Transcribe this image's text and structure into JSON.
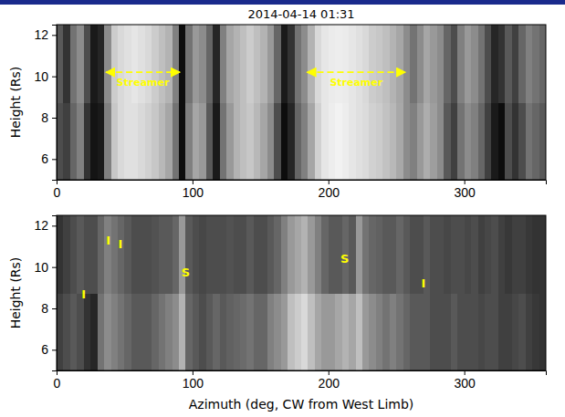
{
  "chart_data": [
    {
      "type": "heatmap",
      "title": "2014-04-14 01:31",
      "ylabel": "Height (Rs)",
      "xlim": [
        0,
        360
      ],
      "xticks": [
        0,
        100,
        200,
        300
      ],
      "ylim": [
        5,
        12.5
      ],
      "yticks": [
        6,
        8,
        10,
        12
      ],
      "zlim": [
        0,
        1
      ],
      "x_bins": [
        0,
        5,
        10,
        15,
        20,
        25,
        30,
        35,
        40,
        45,
        50,
        55,
        60,
        65,
        70,
        75,
        80,
        85,
        90,
        95,
        100,
        105,
        110,
        115,
        120,
        125,
        130,
        135,
        140,
        145,
        150,
        155,
        160,
        165,
        170,
        175,
        180,
        185,
        190,
        195,
        200,
        205,
        210,
        215,
        220,
        225,
        230,
        235,
        240,
        245,
        250,
        255,
        260,
        265,
        270,
        275,
        280,
        285,
        290,
        295,
        300,
        305,
        310,
        315,
        320,
        325,
        330,
        335,
        340,
        345,
        350,
        355,
        360
      ],
      "y_bins": [
        5,
        8.75,
        12.5
      ],
      "cells": [
        [
          0.3,
          0.25,
          0.4,
          0.5,
          0.2,
          0.08,
          0.1,
          0.5,
          0.78,
          0.85,
          0.88,
          0.88,
          0.85,
          0.82,
          0.78,
          0.72,
          0.65,
          0.45,
          0.05,
          0.5,
          0.65,
          0.6,
          0.35,
          0.1,
          0.45,
          0.6,
          0.7,
          0.75,
          0.78,
          0.72,
          0.65,
          0.55,
          0.3,
          0.05,
          0.15,
          0.4,
          0.5,
          0.65,
          0.82,
          0.9,
          0.93,
          0.95,
          0.93,
          0.9,
          0.88,
          0.86,
          0.82,
          0.8,
          0.76,
          0.72,
          0.66,
          0.55,
          0.5,
          0.6,
          0.68,
          0.62,
          0.55,
          0.35,
          0.25,
          0.45,
          0.55,
          0.5,
          0.4,
          0.25,
          0.1,
          0.05,
          0.3,
          0.2,
          0.3,
          0.45,
          0.4,
          0.35
        ],
        [
          0.35,
          0.2,
          0.45,
          0.55,
          0.3,
          0.1,
          0.15,
          0.55,
          0.8,
          0.85,
          0.88,
          0.9,
          0.88,
          0.85,
          0.8,
          0.75,
          0.7,
          0.5,
          0.05,
          0.45,
          0.6,
          0.55,
          0.4,
          0.15,
          0.5,
          0.65,
          0.7,
          0.75,
          0.8,
          0.75,
          0.7,
          0.6,
          0.4,
          0.1,
          0.2,
          0.45,
          0.55,
          0.7,
          0.85,
          0.9,
          0.92,
          0.93,
          0.92,
          0.9,
          0.88,
          0.85,
          0.8,
          0.78,
          0.75,
          0.7,
          0.65,
          0.55,
          0.45,
          0.55,
          0.65,
          0.6,
          0.55,
          0.4,
          0.3,
          0.5,
          0.6,
          0.55,
          0.45,
          0.3,
          0.15,
          0.2,
          0.35,
          0.25,
          0.4,
          0.5,
          0.45,
          0.4
        ]
      ],
      "annotations": [
        {
          "text": "Streamer",
          "x": [
            35,
            92
          ],
          "y": 10.2
        },
        {
          "text": "Streamer",
          "x": [
            183,
            258
          ],
          "y": 10.2
        }
      ]
    },
    {
      "type": "heatmap",
      "xlabel": "Azimuth (deg, CW from West Limb)",
      "ylabel": "Height (Rs)",
      "xlim": [
        0,
        360
      ],
      "xticks": [
        0,
        100,
        200,
        300
      ],
      "ylim": [
        5,
        12.5
      ],
      "yticks": [
        6,
        8,
        10,
        12
      ],
      "zlim": [
        0,
        1
      ],
      "x_bins": [
        0,
        5,
        10,
        15,
        20,
        25,
        30,
        35,
        40,
        45,
        50,
        55,
        60,
        65,
        70,
        75,
        80,
        85,
        90,
        95,
        100,
        105,
        110,
        115,
        120,
        125,
        130,
        135,
        140,
        145,
        150,
        155,
        160,
        165,
        170,
        175,
        180,
        185,
        190,
        195,
        200,
        205,
        210,
        215,
        220,
        225,
        230,
        235,
        240,
        245,
        250,
        255,
        260,
        265,
        270,
        275,
        280,
        285,
        290,
        295,
        300,
        305,
        310,
        315,
        320,
        325,
        330,
        335,
        340,
        345,
        350,
        355,
        360
      ],
      "y_bins": [
        5,
        8.75,
        12.5
      ],
      "cells": [
        [
          0.25,
          0.3,
          0.35,
          0.3,
          0.2,
          0.15,
          0.45,
          0.55,
          0.5,
          0.45,
          0.4,
          0.35,
          0.35,
          0.35,
          0.4,
          0.45,
          0.5,
          0.55,
          0.7,
          0.4,
          0.35,
          0.3,
          0.35,
          0.4,
          0.35,
          0.38,
          0.4,
          0.42,
          0.45,
          0.4,
          0.4,
          0.5,
          0.55,
          0.6,
          0.75,
          0.8,
          0.85,
          0.75,
          0.65,
          0.6,
          0.6,
          0.65,
          0.7,
          0.65,
          0.75,
          0.6,
          0.55,
          0.5,
          0.45,
          0.5,
          0.45,
          0.4,
          0.35,
          0.35,
          0.35,
          0.3,
          0.3,
          0.3,
          0.35,
          0.3,
          0.3,
          0.3,
          0.28,
          0.3,
          0.3,
          0.25,
          0.25,
          0.28,
          0.3,
          0.25,
          0.22,
          0.2
        ],
        [
          0.2,
          0.25,
          0.3,
          0.35,
          0.3,
          0.3,
          0.4,
          0.5,
          0.45,
          0.4,
          0.35,
          0.3,
          0.3,
          0.3,
          0.32,
          0.35,
          0.35,
          0.4,
          0.6,
          0.35,
          0.3,
          0.28,
          0.3,
          0.3,
          0.3,
          0.32,
          0.3,
          0.3,
          0.35,
          0.3,
          0.3,
          0.35,
          0.4,
          0.5,
          0.6,
          0.65,
          0.7,
          0.6,
          0.5,
          0.4,
          0.35,
          0.35,
          0.4,
          0.35,
          0.6,
          0.45,
          0.4,
          0.38,
          0.35,
          0.35,
          0.4,
          0.35,
          0.3,
          0.3,
          0.35,
          0.3,
          0.3,
          0.28,
          0.3,
          0.3,
          0.28,
          0.3,
          0.25,
          0.28,
          0.3,
          0.25,
          0.22,
          0.25,
          0.25,
          0.22,
          0.2,
          0.2
        ]
      ],
      "annotations": [
        {
          "text": "I",
          "x": 20,
          "y": 8.7
        },
        {
          "text": "I",
          "x": 38,
          "y": 11.3
        },
        {
          "text": "I",
          "x": 47,
          "y": 11.1
        },
        {
          "text": "S",
          "x": 95,
          "y": 9.75
        },
        {
          "text": "S",
          "x": 212,
          "y": 10.4
        },
        {
          "text": "I",
          "x": 270,
          "y": 9.2
        }
      ]
    }
  ]
}
